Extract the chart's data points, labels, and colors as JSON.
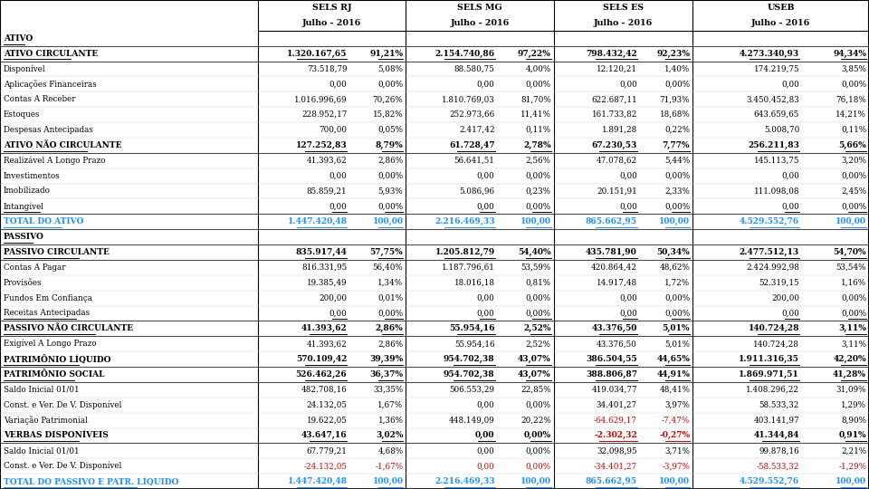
{
  "col_headers": [
    "SELS RJ\nJulho - 2016",
    "SELS MG\nJulho - 2016",
    "SELS ES\nJulho - 2016",
    "USEB\nJulho - 2016"
  ],
  "rows": [
    {
      "label": "ATIVO",
      "vals": [
        "",
        "",
        "",
        "",
        "",
        "",
        "",
        ""
      ],
      "style": "bold_underline",
      "color": "black"
    },
    {
      "label": "ATIVO CIRCULANTE",
      "vals": [
        "1.320.167,65",
        "91,21%",
        "2.154.740,86",
        "97,22%",
        "798.432,42",
        "92,23%",
        "4.273.340,93",
        "94,34%"
      ],
      "style": "bold_underline",
      "color": "black"
    },
    {
      "label": "Disponível",
      "vals": [
        "73.518,79",
        "5,08%",
        "88.580,75",
        "4,00%",
        "12.120,21",
        "1,40%",
        "174.219,75",
        "3,85%"
      ],
      "style": "normal",
      "color": "black"
    },
    {
      "label": "Aplicações Financeiras",
      "vals": [
        "0,00",
        "0,00%",
        "0,00",
        "0,00%",
        "0,00",
        "0,00%",
        "0,00",
        "0,00%"
      ],
      "style": "normal",
      "color": "black"
    },
    {
      "label": "Contas A Receber",
      "vals": [
        "1.016.996,69",
        "70,26%",
        "1.810.769,03",
        "81,70%",
        "622.687,11",
        "71,93%",
        "3.450.452,83",
        "76,18%"
      ],
      "style": "normal",
      "color": "black"
    },
    {
      "label": "Estoques",
      "vals": [
        "228.952,17",
        "15,82%",
        "252.973,66",
        "11,41%",
        "161.733,82",
        "18,68%",
        "643.659,65",
        "14,21%"
      ],
      "style": "normal",
      "color": "black"
    },
    {
      "label": "Despesas Antecipadas",
      "vals": [
        "700,00",
        "0,05%",
        "2.417,42",
        "0,11%",
        "1.891,28",
        "0,22%",
        "5.008,70",
        "0,11%"
      ],
      "style": "normal",
      "color": "black"
    },
    {
      "label": "ATIVO NÃO CIRCULANTE",
      "vals": [
        "127.252,83",
        "8,79%",
        "61.728,47",
        "2,78%",
        "67.230,53",
        "7,77%",
        "256.211,83",
        "5,66%"
      ],
      "style": "bold_underline",
      "color": "black"
    },
    {
      "label": "Realizável A Longo Prazo",
      "vals": [
        "41.393,62",
        "2,86%",
        "56.641,51",
        "2,56%",
        "47.078,62",
        "5,44%",
        "145.113,75",
        "3,20%"
      ],
      "style": "normal",
      "color": "black"
    },
    {
      "label": "Investimentos",
      "vals": [
        "0,00",
        "0,00%",
        "0,00",
        "0,00%",
        "0,00",
        "0,00%",
        "0,00",
        "0,00%"
      ],
      "style": "normal",
      "color": "black"
    },
    {
      "label": "Imobilizado",
      "vals": [
        "85.859,21",
        "5,93%",
        "5.086,96",
        "0,23%",
        "20.151,91",
        "2,33%",
        "111.098,08",
        "2,45%"
      ],
      "style": "normal",
      "color": "black"
    },
    {
      "label": "Intangível",
      "vals": [
        "0,00",
        "0,00%",
        "0,00",
        "0,00%",
        "0,00",
        "0,00%",
        "0,00",
        "0,00%"
      ],
      "style": "normal_underline",
      "color": "black"
    },
    {
      "label": "TOTAL DO ATIVO",
      "vals": [
        "1.447.420,48",
        "100,00",
        "2.216.469,33",
        "100,00",
        "865.662,95",
        "100,00",
        "4.529.552,76",
        "100,00"
      ],
      "style": "bold_underline",
      "color": "cyan"
    },
    {
      "label": "PASSIVO",
      "vals": [
        "",
        "",
        "",
        "",
        "",
        "",
        "",
        ""
      ],
      "style": "bold_underline",
      "color": "black"
    },
    {
      "label": "PASSIVO CIRCULANTE",
      "vals": [
        "835.917,44",
        "57,75%",
        "1.205.812,79",
        "54,40%",
        "435.781,90",
        "50,34%",
        "2.477.512,13",
        "54,70%"
      ],
      "style": "bold_underline",
      "color": "black"
    },
    {
      "label": "Contas A Pagar",
      "vals": [
        "816.331,95",
        "56,40%",
        "1.187.796,61",
        "53,59%",
        "420.864,42",
        "48,62%",
        "2.424.992,98",
        "53,54%"
      ],
      "style": "normal",
      "color": "black"
    },
    {
      "label": "Provisões",
      "vals": [
        "19.385,49",
        "1,34%",
        "18.016,18",
        "0,81%",
        "14.917,48",
        "1,72%",
        "52.319,15",
        "1,16%"
      ],
      "style": "normal",
      "color": "black"
    },
    {
      "label": "Fundos Em Confiança",
      "vals": [
        "200,00",
        "0,01%",
        "0,00",
        "0,00%",
        "0,00",
        "0,00%",
        "200,00",
        "0,00%"
      ],
      "style": "normal",
      "color": "black"
    },
    {
      "label": "Receitas Antecipadas",
      "vals": [
        "0,00",
        "0,00%",
        "0,00",
        "0,00%",
        "0,00",
        "0,00%",
        "0,00",
        "0,00%"
      ],
      "style": "normal_underline",
      "color": "black"
    },
    {
      "label": "PASSIVO NÃO CIRCULANTE",
      "vals": [
        "41.393,62",
        "2,86%",
        "55.954,16",
        "2,52%",
        "43.376,50",
        "5,01%",
        "140.724,28",
        "3,11%"
      ],
      "style": "bold_underline",
      "color": "black"
    },
    {
      "label": "Exigível A Longo Prazo",
      "vals": [
        "41.393,62",
        "2,86%",
        "55.954,16",
        "2,52%",
        "43.376,50",
        "5,01%",
        "140.724,28",
        "3,11%"
      ],
      "style": "normal",
      "color": "black"
    },
    {
      "label": "PATRIMÔNIO LÍQUIDO",
      "vals": [
        "570.109,42",
        "39,39%",
        "954.702,38",
        "43,07%",
        "386.504,55",
        "44,65%",
        "1.911.316,35",
        "42,20%"
      ],
      "style": "bold_underline",
      "color": "black"
    },
    {
      "label": "PATRIMÔNIO SOCIAL",
      "vals": [
        "526.462,26",
        "36,37%",
        "954.702,38",
        "43,07%",
        "388.806,87",
        "44,91%",
        "1.869.971,51",
        "41,28%"
      ],
      "style": "bold_underline",
      "color": "black"
    },
    {
      "label": "Saldo Inicial 01/01",
      "vals": [
        "482.708,16",
        "33,35%",
        "506.553,29",
        "22,85%",
        "419.034,77",
        "48,41%",
        "1.408.296,22",
        "31,09%"
      ],
      "style": "normal",
      "color": "black"
    },
    {
      "label": "Const. e Ver. De V. Disponível",
      "vals": [
        "24.132,05",
        "1,67%",
        "0,00",
        "0,00%",
        "34.401,27",
        "3,97%",
        "58.533,32",
        "1,29%"
      ],
      "style": "normal",
      "color": "black"
    },
    {
      "label": "Variação Patrimonial",
      "vals": [
        "19.622,05",
        "1,36%",
        "448.149,09",
        "20,22%",
        "-64.629,17",
        "-7,47%",
        "403.141,97",
        "8,90%"
      ],
      "style": "normal",
      "color": "black"
    },
    {
      "label": "VERBAS DISPONÍVEIS",
      "vals": [
        "43.647,16",
        "3,02%",
        "0,00",
        "0,00%",
        "-2.302,32",
        "-0,27%",
        "41.344,84",
        "0,91%"
      ],
      "style": "bold_underline",
      "color": "black"
    },
    {
      "label": "Saldo Inicial 01/01",
      "vals": [
        "67.779,21",
        "4,68%",
        "0,00",
        "0,00%",
        "32.098,95",
        "3,71%",
        "99.878,16",
        "2,21%"
      ],
      "style": "normal",
      "color": "black"
    },
    {
      "label": "Const. e Ver. De V. Disponível",
      "vals": [
        "-24.132,05",
        "-1,67%",
        "0,00",
        "0,00%",
        "-34.401,27",
        "-3,97%",
        "-58.533,32",
        "-1,29%"
      ],
      "style": "normal",
      "color": "red"
    },
    {
      "label": "TOTAL DO PASSIVO E PATR. LÍQUIDO",
      "vals": [
        "1.447.420,48",
        "100,00",
        "2.216.469,33",
        "100,00",
        "865.662,95",
        "100,00",
        "4.529.552,76",
        "100,00"
      ],
      "style": "bold_underline",
      "color": "cyan"
    }
  ],
  "bg_color": "#ffffff",
  "text_color": "#000000",
  "cyan_color": "#1E90FF",
  "red_color": "#CC0000",
  "figw": 9.6,
  "figh": 5.4,
  "dpi": 100
}
